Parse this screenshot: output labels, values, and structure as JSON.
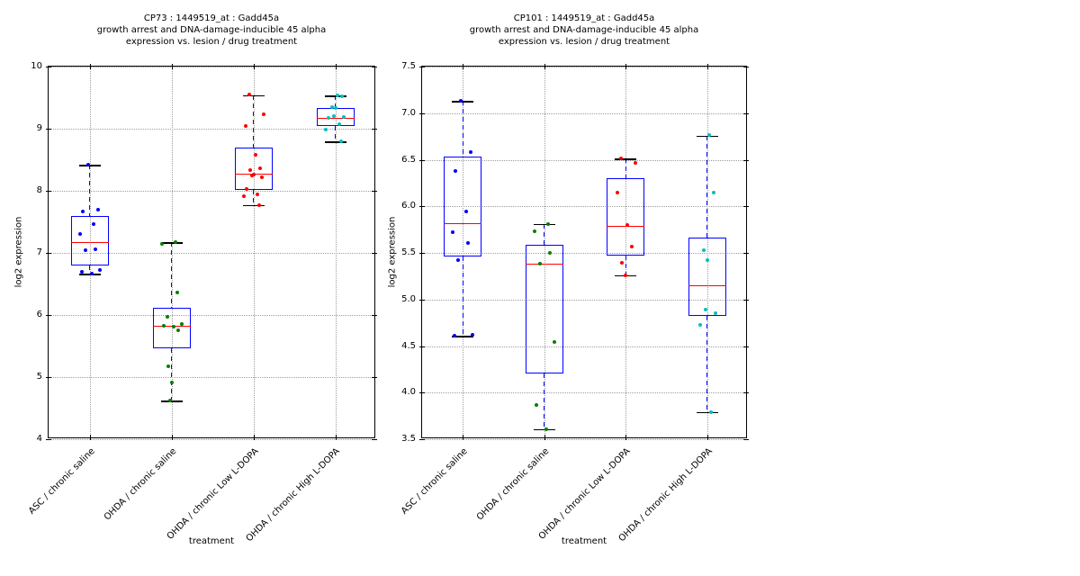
{
  "figure_background": "#ffffff",
  "styles": {
    "box_color": "#0000ff",
    "median_color": "#ff0000",
    "whisker_color": "#0000ff",
    "cap_color": "#000000",
    "grid_color": "#9e9e9e",
    "axis_color": "#000000"
  },
  "chart_data": [
    {
      "type": "box",
      "title": "CP73 : 1449519_at : Gadd45a",
      "subtitle1": "growth arrest and DNA-damage-inducible 45 alpha",
      "subtitle2": "expression vs. lesion / drug treatment",
      "xlabel": "treatment",
      "ylabel": "log2 expression",
      "ylim": [
        4,
        10
      ],
      "yticks": [
        4,
        5,
        6,
        7,
        8,
        9,
        10
      ],
      "ytick_labels": [
        "4",
        "5",
        "6",
        "7",
        "8",
        "9",
        "10"
      ],
      "grid": true,
      "legend": false,
      "categories": [
        "ASC / chronic saline",
        "OHDA / chronic saline",
        "OHDA / chronic Low L-DOPA",
        "OHDA / chronic High L-DOPA"
      ],
      "groups": [
        {
          "category": "ASC / chronic saline",
          "point_color": "#0000ff",
          "whisker_low": 6.66,
          "q1": 6.79,
          "median": 7.18,
          "q3": 7.6,
          "whisker_high": 8.42,
          "points": [
            8.42,
            7.7,
            7.67,
            7.47,
            7.31,
            7.06,
            7.04,
            6.73,
            6.7,
            6.67
          ]
        },
        {
          "category": "OHDA / chronic saline",
          "point_color": "#008000",
          "whisker_low": 4.62,
          "q1": 5.47,
          "median": 5.82,
          "q3": 6.12,
          "whisker_high": 7.17,
          "points": [
            7.18,
            7.15,
            6.36,
            5.97,
            5.85,
            5.83,
            5.81,
            5.76,
            5.17,
            4.91,
            4.63
          ]
        },
        {
          "category": "OHDA / chronic Low L-DOPA",
          "point_color": "#ff0000",
          "whisker_low": 7.77,
          "q1": 8.01,
          "median": 8.28,
          "q3": 8.7,
          "whisker_high": 9.54,
          "points": [
            9.55,
            9.23,
            9.05,
            8.58,
            8.36,
            8.34,
            8.26,
            8.24,
            8.22,
            8.03,
            7.94,
            7.92,
            7.77
          ]
        },
        {
          "category": "OHDA / chronic High L-DOPA",
          "point_color": "#00bfbf",
          "whisker_low": 8.79,
          "q1": 9.05,
          "median": 9.18,
          "q3": 9.33,
          "whisker_high": 9.53,
          "points": [
            9.53,
            9.52,
            9.35,
            9.33,
            9.2,
            9.19,
            9.17,
            9.07,
            8.99,
            8.8
          ]
        }
      ]
    },
    {
      "type": "box",
      "title": "CP101 : 1449519_at : Gadd45a",
      "subtitle1": "growth arrest and DNA-damage-inducible 45 alpha",
      "subtitle2": "expression vs. lesion / drug treatment",
      "xlabel": "treatment",
      "ylabel": "log2 expression",
      "ylim": [
        3.5,
        7.5
      ],
      "yticks": [
        3.5,
        4.0,
        4.5,
        5.0,
        5.5,
        6.0,
        6.5,
        7.0,
        7.5
      ],
      "ytick_labels": [
        "3.5",
        "4.0",
        "4.5",
        "5.0",
        "5.5",
        "6.0",
        "6.5",
        "7.0",
        "7.5"
      ],
      "grid": true,
      "legend": false,
      "categories": [
        "ASC / chronic saline",
        "OHDA / chronic saline",
        "OHDA / chronic Low L-DOPA",
        "OHDA / chronic High L-DOPA"
      ],
      "groups": [
        {
          "category": "ASC / chronic saline",
          "point_color": "#0000ff",
          "whisker_low": 4.61,
          "q1": 5.46,
          "median": 5.82,
          "q3": 6.53,
          "whisker_high": 7.13,
          "points": [
            7.13,
            6.58,
            6.38,
            5.94,
            5.72,
            5.61,
            5.42,
            4.62,
            4.61
          ]
        },
        {
          "category": "OHDA / chronic saline",
          "point_color": "#008000",
          "whisker_low": 3.61,
          "q1": 4.21,
          "median": 5.38,
          "q3": 5.59,
          "whisker_high": 5.81,
          "points": [
            5.81,
            5.73,
            5.5,
            5.38,
            4.54,
            3.87,
            3.61
          ]
        },
        {
          "category": "OHDA / chronic Low L-DOPA",
          "point_color": "#ff0000",
          "whisker_low": 5.26,
          "q1": 5.47,
          "median": 5.79,
          "q3": 6.3,
          "whisker_high": 6.51,
          "points": [
            6.51,
            6.47,
            6.15,
            5.8,
            5.57,
            5.39,
            5.26
          ]
        },
        {
          "category": "OHDA / chronic High L-DOPA",
          "point_color": "#00bfbf",
          "whisker_low": 3.79,
          "q1": 4.82,
          "median": 5.15,
          "q3": 5.66,
          "whisker_high": 6.76,
          "points": [
            6.77,
            6.15,
            5.53,
            5.42,
            4.89,
            4.85,
            4.73,
            3.79
          ]
        }
      ]
    }
  ]
}
